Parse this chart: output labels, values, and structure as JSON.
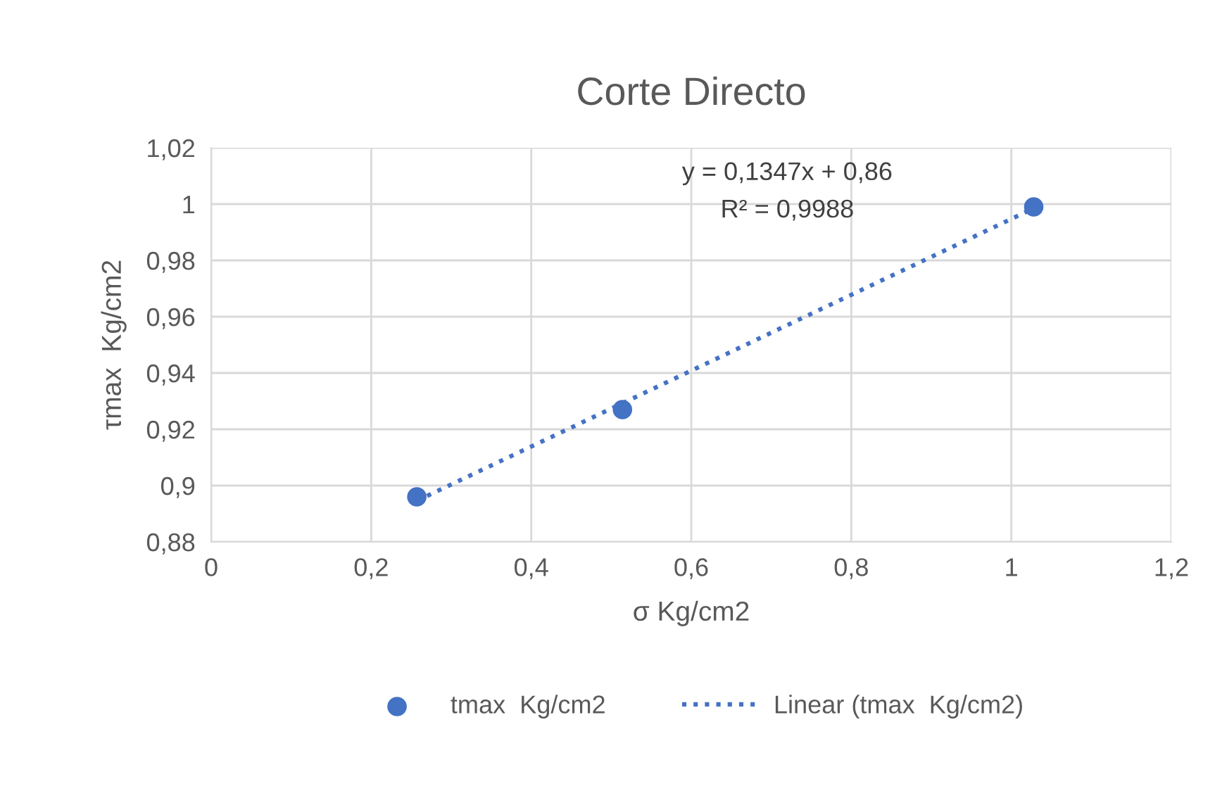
{
  "chart_data": {
    "type": "scatter",
    "title": "Corte Directo",
    "xlabel": "σ Kg/cm2",
    "ylabel": "τmax  Kg/cm2",
    "series": [
      {
        "name": "tmax  Kg/cm2",
        "color": "#4472c4",
        "marker": "circle",
        "x": [
          0.257,
          0.514,
          1.028
        ],
        "values": [
          0.896,
          0.927,
          0.999
        ]
      },
      {
        "name": "Linear (tmax  Kg/cm2)",
        "type": "line",
        "color": "#4472c4",
        "marker": "none",
        "line_style": "dotted",
        "x": [
          0.257,
          1.028
        ],
        "values": [
          0.8946,
          0.9985
        ]
      }
    ],
    "annotations": [
      "y = 0,1347x + 0,86",
      "R² = 0,9988"
    ],
    "xlim": [
      0,
      1.2
    ],
    "xticks": [
      0,
      {
        "value": 0.2,
        "label": "0,2"
      },
      {
        "value": 0.4,
        "label": "0,4"
      },
      {
        "value": 0.6,
        "label": "0,6"
      },
      {
        "value": 0.8,
        "label": "0,8"
      },
      1,
      {
        "value": 1.2,
        "label": "1,2"
      }
    ],
    "ylim": [
      0.88,
      1.02
    ],
    "yticks": [
      {
        "value": 0.88,
        "label": "0,88"
      },
      {
        "value": 0.9,
        "label": "0,9"
      },
      {
        "value": 0.92,
        "label": "0,92"
      },
      {
        "value": 0.94,
        "label": "0,94"
      },
      {
        "value": 0.96,
        "label": "0,96"
      },
      {
        "value": 0.98,
        "label": "0,98"
      },
      1,
      {
        "value": 1.02,
        "label": "1,02"
      }
    ],
    "grid": true,
    "legend": "bottom"
  }
}
